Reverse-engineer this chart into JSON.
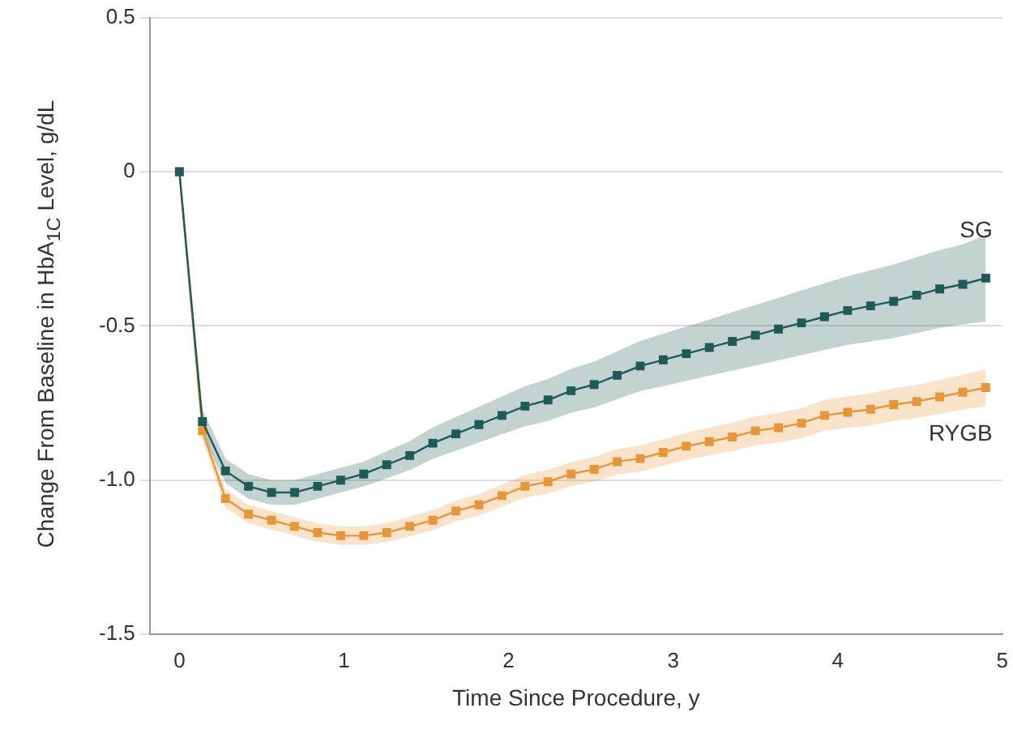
{
  "chart_data": {
    "type": "line",
    "xlabel": "Time Since Procedure, y",
    "ylabel": "Change From Baseline in HbA$_{1C}$ Level, g/dL",
    "x": [
      0,
      0.14,
      0.28,
      0.42,
      0.56,
      0.7,
      0.84,
      0.98,
      1.12,
      1.26,
      1.4,
      1.54,
      1.68,
      1.82,
      1.96,
      2.1,
      2.24,
      2.38,
      2.52,
      2.66,
      2.8,
      2.94,
      3.08,
      3.22,
      3.36,
      3.5,
      3.64,
      3.78,
      3.92,
      4.06,
      4.2,
      4.34,
      4.48,
      4.62,
      4.76,
      4.9
    ],
    "series": [
      {
        "name": "SG",
        "color": "#1d5a58",
        "values": [
          0,
          -0.81,
          -0.97,
          -1.02,
          -1.04,
          -1.04,
          -1.02,
          -1.0,
          -0.98,
          -0.95,
          -0.92,
          -0.88,
          -0.85,
          -0.82,
          -0.79,
          -0.76,
          -0.74,
          -0.71,
          -0.69,
          -0.66,
          -0.63,
          -0.61,
          -0.59,
          -0.57,
          -0.55,
          -0.53,
          -0.51,
          -0.49,
          -0.47,
          -0.45,
          -0.435,
          -0.42,
          -0.4,
          -0.38,
          -0.365,
          -0.345
        ],
        "lower": [
          0,
          -0.85,
          -1.01,
          -1.06,
          -1.08,
          -1.08,
          -1.06,
          -1.04,
          -1.02,
          -0.994,
          -0.967,
          -0.931,
          -0.905,
          -0.878,
          -0.851,
          -0.825,
          -0.808,
          -0.781,
          -0.764,
          -0.738,
          -0.711,
          -0.695,
          -0.678,
          -0.661,
          -0.645,
          -0.628,
          -0.611,
          -0.595,
          -0.578,
          -0.561,
          -0.55,
          -0.539,
          -0.523,
          -0.506,
          -0.495,
          -0.485
        ],
        "upper": [
          0,
          -0.77,
          -0.93,
          -0.98,
          -1.0,
          -1.0,
          -0.98,
          -0.96,
          -0.94,
          -0.906,
          -0.873,
          -0.829,
          -0.795,
          -0.762,
          -0.729,
          -0.695,
          -0.672,
          -0.639,
          -0.616,
          -0.582,
          -0.549,
          -0.525,
          -0.502,
          -0.479,
          -0.455,
          -0.432,
          -0.409,
          -0.385,
          -0.362,
          -0.339,
          -0.32,
          -0.301,
          -0.277,
          -0.254,
          -0.235,
          -0.205
        ]
      },
      {
        "name": "RYGB",
        "color": "#e8963a",
        "values": [
          0,
          -0.84,
          -1.06,
          -1.11,
          -1.13,
          -1.15,
          -1.17,
          -1.18,
          -1.18,
          -1.17,
          -1.15,
          -1.13,
          -1.1,
          -1.08,
          -1.05,
          -1.02,
          -1.005,
          -0.98,
          -0.965,
          -0.94,
          -0.93,
          -0.91,
          -0.89,
          -0.875,
          -0.86,
          -0.84,
          -0.83,
          -0.815,
          -0.79,
          -0.78,
          -0.77,
          -0.755,
          -0.745,
          -0.73,
          -0.715,
          -0.7
        ],
        "lower": [
          0,
          -0.87,
          -1.09,
          -1.14,
          -1.16,
          -1.18,
          -1.2,
          -1.21,
          -1.21,
          -1.201,
          -1.182,
          -1.163,
          -1.134,
          -1.115,
          -1.086,
          -1.057,
          -1.043,
          -1.019,
          -1.005,
          -0.981,
          -0.972,
          -0.953,
          -0.934,
          -0.92,
          -0.906,
          -0.887,
          -0.878,
          -0.864,
          -0.84,
          -0.831,
          -0.822,
          -0.808,
          -0.799,
          -0.785,
          -0.771,
          -0.76
        ],
        "upper": [
          0,
          -0.81,
          -1.03,
          -1.08,
          -1.1,
          -1.12,
          -1.14,
          -1.15,
          -1.15,
          -1.139,
          -1.118,
          -1.097,
          -1.066,
          -1.045,
          -1.014,
          -0.983,
          -0.967,
          -0.941,
          -0.925,
          -0.899,
          -0.888,
          -0.867,
          -0.846,
          -0.83,
          -0.814,
          -0.793,
          -0.782,
          -0.766,
          -0.74,
          -0.729,
          -0.718,
          -0.702,
          -0.691,
          -0.675,
          -0.659,
          -0.64
        ]
      }
    ],
    "xlim": [
      -0.18,
      5
    ],
    "xticks": [
      0,
      1,
      2,
      3,
      4,
      5
    ],
    "ylim": [
      -1.5,
      0.5
    ],
    "yticks": [
      {
        "value": -1.5,
        "label": "-1.5"
      },
      {
        "value": -1,
        "label": "-1.0"
      },
      {
        "value": -0.5,
        "label": "-0.5"
      },
      0,
      {
        "value": 0.5,
        "label": "0.5"
      }
    ],
    "grid": "y",
    "legend": false,
    "marker": "square",
    "line_style": "solid"
  }
}
